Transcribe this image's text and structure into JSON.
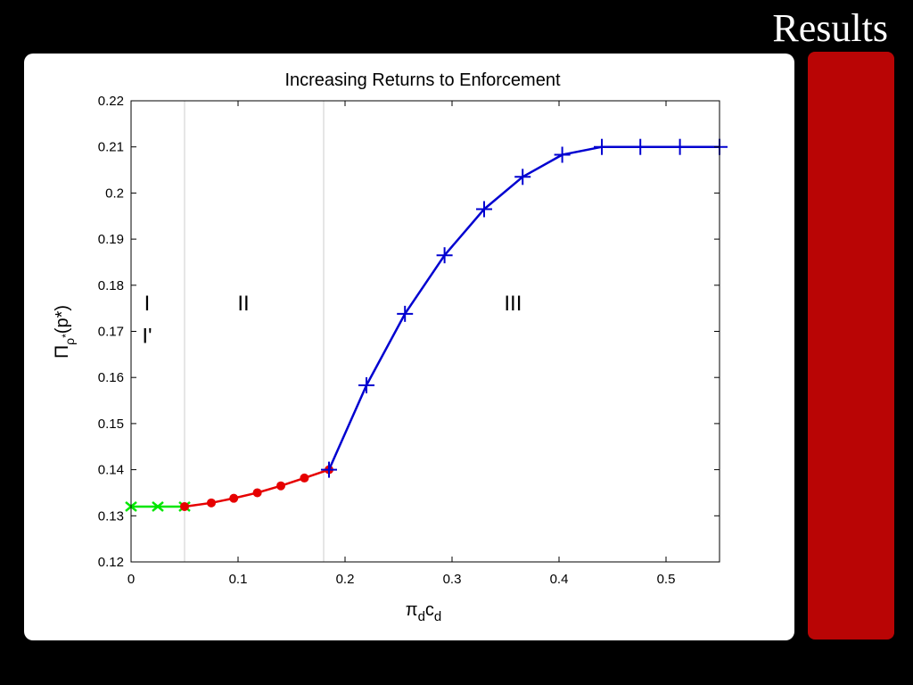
{
  "slide": {
    "title": "Results",
    "accent_color": "#b90505"
  },
  "chart_data": {
    "type": "line",
    "title": "Increasing Returns to Enforcement",
    "xlabel": {
      "main": "π",
      "sub1": "d",
      "mid": "c",
      "sub2": "d"
    },
    "ylabel": {
      "main": "Π",
      "sub": "ρ",
      "supsub": "*",
      "rest": "(p*)"
    },
    "xlim": [
      0,
      0.55
    ],
    "ylim": [
      0.12,
      0.22
    ],
    "xticks": [
      0,
      0.1,
      0.2,
      0.3,
      0.4,
      0.5
    ],
    "xtick_labels": [
      "0",
      "0.1",
      "0.2",
      "0.3",
      "0.4",
      "0.5"
    ],
    "yticks": [
      0.12,
      0.13,
      0.14,
      0.15,
      0.16,
      0.17,
      0.18,
      0.19,
      0.2,
      0.21,
      0.22
    ],
    "ytick_labels": [
      "0.12",
      "0.13",
      "0.14",
      "0.15",
      "0.16",
      "0.17",
      "0.18",
      "0.19",
      "0.2",
      "0.21",
      "0.22"
    ],
    "grid": false,
    "region_boundaries": [
      0.05,
      0.18
    ],
    "region_labels": [
      {
        "text": "I",
        "x": 0.015,
        "y": 0.1745
      },
      {
        "text": "I'",
        "x": 0.015,
        "y": 0.1675
      },
      {
        "text": "II",
        "x": 0.105,
        "y": 0.1745
      },
      {
        "text": "III",
        "x": 0.357,
        "y": 0.1745
      }
    ],
    "series": [
      {
        "color": "#00e600",
        "marker": "x",
        "x": [
          0,
          0.025,
          0.05
        ],
        "y": [
          0.132,
          0.132,
          0.132
        ]
      },
      {
        "color": "#e60000",
        "marker": "circle",
        "x": [
          0.05,
          0.075,
          0.096,
          0.118,
          0.14,
          0.162,
          0.185
        ],
        "y": [
          0.132,
          0.1328,
          0.1338,
          0.135,
          0.1365,
          0.1382,
          0.14
        ]
      },
      {
        "color": "#0000d0",
        "marker": "plus",
        "x": [
          0.185,
          0.22,
          0.256,
          0.293,
          0.33,
          0.366,
          0.403,
          0.44,
          0.476,
          0.513,
          0.55
        ],
        "y": [
          0.14,
          0.1583,
          0.1738,
          0.1865,
          0.1965,
          0.2035,
          0.2083,
          0.21,
          0.21,
          0.21,
          0.21
        ]
      }
    ]
  }
}
